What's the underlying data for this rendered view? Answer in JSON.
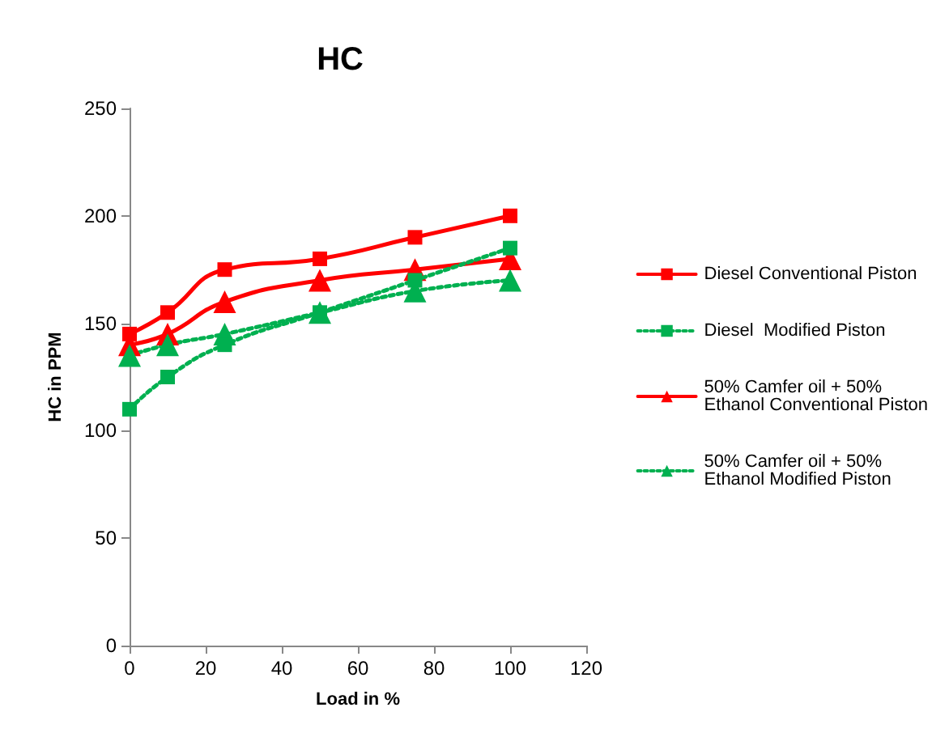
{
  "chart_data": {
    "type": "line",
    "title": "HC",
    "xlabel": "Load in %",
    "ylabel": "HC in PPM",
    "x": [
      0,
      10,
      25,
      50,
      75,
      100
    ],
    "series": [
      {
        "name": "Diesel Conventional Piston",
        "color": "#ff0000",
        "marker": "square",
        "line_style": "solid",
        "values": [
          145,
          155,
          175,
          180,
          190,
          200
        ]
      },
      {
        "name": "Diesel  Modified Piston",
        "color": "#00b050",
        "marker": "square",
        "line_style": "dotted",
        "values": [
          110,
          125,
          140,
          155,
          170,
          185
        ]
      },
      {
        "name": "50% Camfer oil + 50% Ethanol Conventional Piston",
        "color": "#ff0000",
        "marker": "triangle",
        "line_style": "solid",
        "values": [
          140,
          145,
          160,
          170,
          175,
          180
        ]
      },
      {
        "name": "50% Camfer oil + 50% Ethanol Modified Piston",
        "color": "#00b050",
        "marker": "triangle",
        "line_style": "dotted",
        "values": [
          135,
          140,
          145,
          155,
          165,
          170
        ]
      }
    ],
    "xlim": [
      0,
      120
    ],
    "xticks": [
      0,
      20,
      40,
      60,
      80,
      100,
      120
    ],
    "ylim": [
      0,
      250
    ],
    "yticks": [
      0,
      50,
      100,
      150,
      200,
      250
    ],
    "grid": false,
    "legend": "right"
  }
}
